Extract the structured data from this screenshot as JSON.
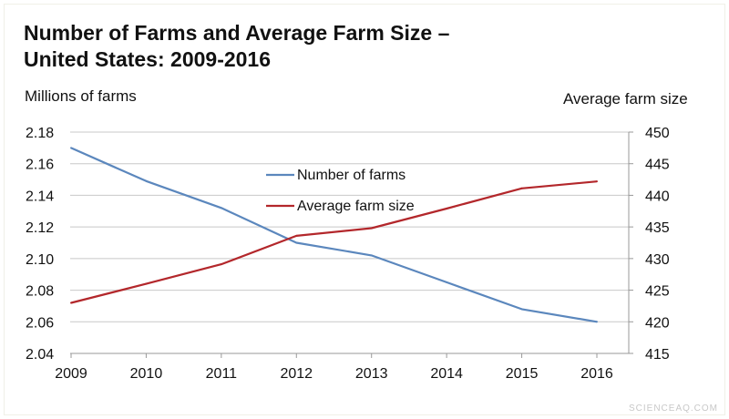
{
  "chart_data": {
    "type": "line",
    "title_line1": "Number of Farms and Average Farm Size –",
    "title_line2": "United States: 2009-2016",
    "ylabel_left": "Millions of farms",
    "ylabel_right": "Average farm size",
    "x": [
      "2009",
      "2010",
      "2011",
      "2012",
      "2013",
      "2014",
      "2015",
      "2016"
    ],
    "ylim_left": [
      2.04,
      2.18
    ],
    "yticks_left": [
      "2.18",
      "2.16",
      "2.14",
      "2.12",
      "2.10",
      "2.08",
      "2.06",
      "2.04"
    ],
    "ylim_right": [
      415,
      450
    ],
    "yticks_right": [
      "450",
      "445",
      "440",
      "435",
      "430",
      "425",
      "420",
      "415"
    ],
    "grid": true,
    "legend_position": "top-center",
    "series": [
      {
        "name": "Number of farms",
        "axis": "left",
        "color": "#5b87bd",
        "values": [
          2.17,
          2.149,
          2.132,
          2.11,
          2.102,
          2.085,
          2.068,
          2.06
        ]
      },
      {
        "name": "Average farm size",
        "axis": "right",
        "color": "#b3272b",
        "values": [
          423.0,
          426.0,
          429.1,
          433.6,
          434.8,
          437.9,
          441.1,
          442.2
        ]
      }
    ]
  },
  "watermark": "SCIENCEAQ.COM"
}
